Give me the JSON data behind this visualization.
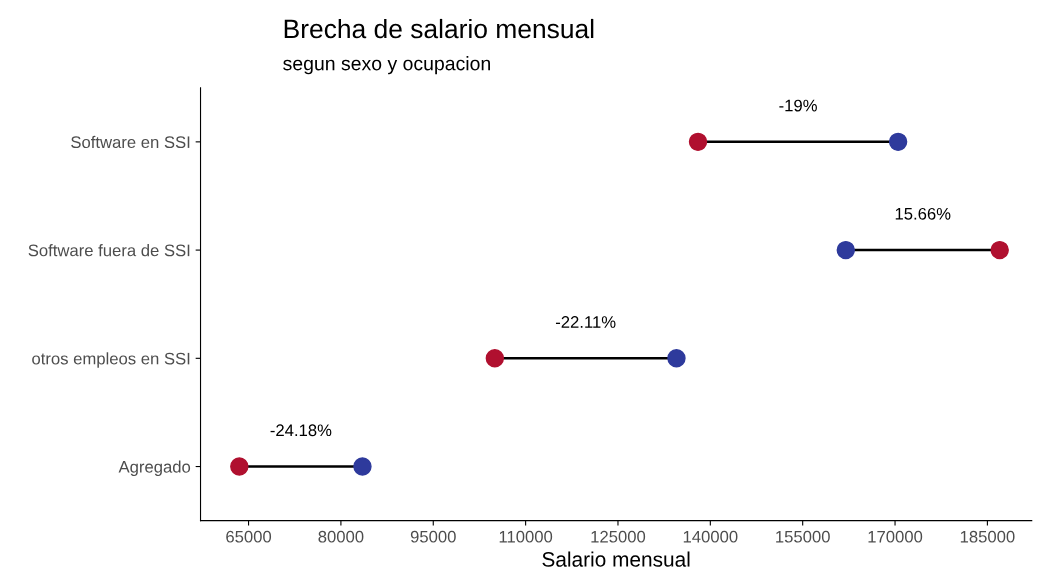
{
  "chart_data": {
    "type": "scatter",
    "orientation": "horizontal",
    "title": "Brecha de salario mensual",
    "subtitle": "segun sexo y ocupacion",
    "xlabel": "Salario mensual",
    "categories": [
      "Software en SSI",
      "Software fuera de SSI",
      "otros empleos en SSI",
      "Agregado"
    ],
    "series": [
      {
        "color": "#b0102f",
        "values": [
          138000,
          187000,
          105000,
          63500
        ]
      },
      {
        "color": "#2e3a9c",
        "values": [
          170500,
          162000,
          134500,
          83500
        ]
      }
    ],
    "annotations": [
      "-19%",
      "15.66%",
      "-22.11%",
      "-24.18%"
    ],
    "xlim": [
      57200,
      192200
    ],
    "xticks": [
      65000,
      80000,
      95000,
      110000,
      125000,
      140000,
      155000,
      170000,
      185000
    ],
    "marker": "circle",
    "grid": false,
    "legend": false
  }
}
